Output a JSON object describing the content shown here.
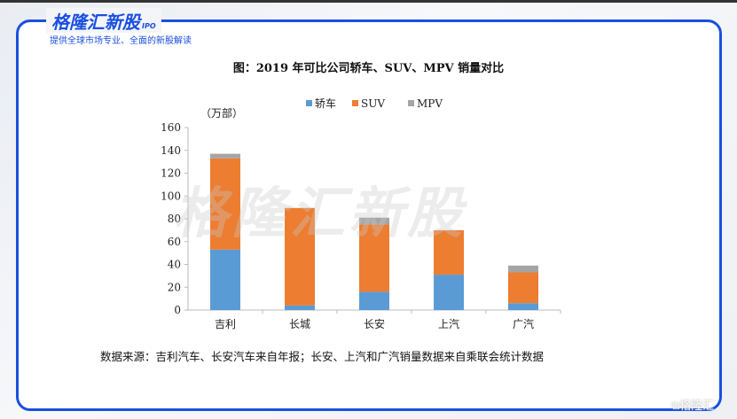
{
  "brand": {
    "name": "格隆汇新股",
    "tag": "IPO",
    "slogan": "提供全球市场专业、全面的新股解读",
    "watermark": "格隆汇新股",
    "corner_logo": "格隆汇"
  },
  "chart_data": {
    "type": "bar",
    "stacked": true,
    "title": "图：2019 年可比公司轿车、SUV、MPV 销量对比",
    "ylabel": "（万部）",
    "xlabel": "",
    "categories": [
      "吉利",
      "长城",
      "长安",
      "上汽",
      "广汽"
    ],
    "series": [
      {
        "name": "轿车",
        "color": "#5b9bd5",
        "values": [
          53,
          4,
          16,
          31,
          6
        ]
      },
      {
        "name": "SUV",
        "color": "#ed7d31",
        "values": [
          80,
          85.5,
          59,
          39,
          27
        ]
      },
      {
        "name": "MPV",
        "color": "#a5a5a5",
        "values": [
          4,
          0,
          6,
          0,
          6
        ]
      }
    ],
    "ylim": [
      0,
      160
    ],
    "yticks": [
      0,
      20,
      40,
      60,
      80,
      100,
      120,
      140,
      160
    ],
    "grid": false,
    "legend": "top"
  },
  "source": "数据来源：吉利汽车、长安汽车来自年报；长安、上汽和广汽销量数据来自乘联会统计数据"
}
